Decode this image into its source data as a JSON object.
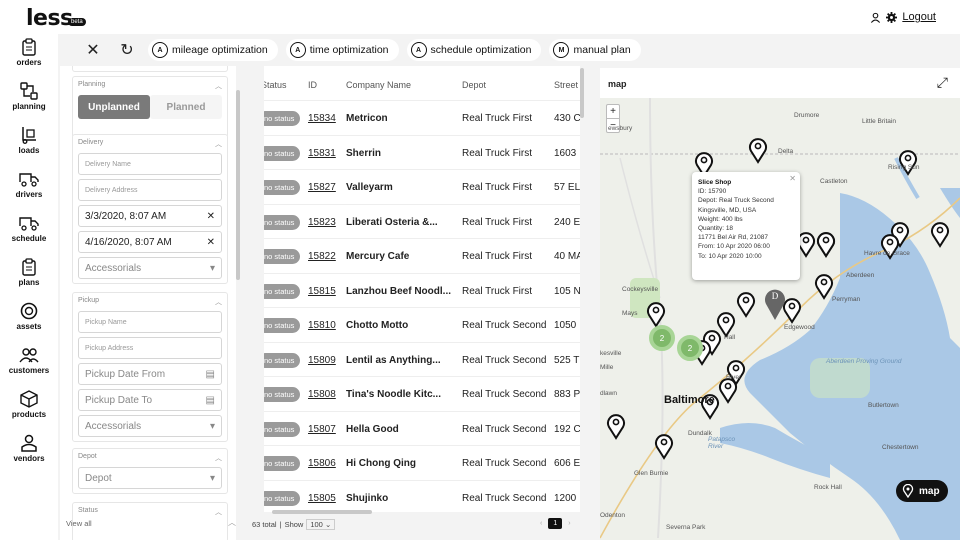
{
  "header": {
    "logo": "less",
    "logo_badge": "beta",
    "logout": "Logout"
  },
  "nav": [
    {
      "label": "orders",
      "icon": "clipboard-icon"
    },
    {
      "label": "planning",
      "icon": "route-icon"
    },
    {
      "label": "loads",
      "icon": "dolly-icon"
    },
    {
      "label": "drivers",
      "icon": "truck-user-icon"
    },
    {
      "label": "schedule",
      "icon": "truck-clock-icon"
    },
    {
      "label": "plans",
      "icon": "clipboard-list-icon"
    },
    {
      "label": "assets",
      "icon": "tire-icon"
    },
    {
      "label": "customers",
      "icon": "users-icon"
    },
    {
      "label": "products",
      "icon": "box-icon"
    },
    {
      "label": "vendors",
      "icon": "vendor-icon"
    }
  ],
  "toolbar": {
    "mileage": "mileage optimization",
    "time": "time optimization",
    "schedule": "schedule optimization",
    "manual": "manual plan",
    "mileage_badge": "A",
    "time_badge": "A",
    "schedule_badge": "A",
    "manual_badge": "M"
  },
  "filters": {
    "planning_label": "Planning",
    "unplanned": "Unplanned",
    "planned": "Planned",
    "delivery_label": "Delivery",
    "delivery_name": "Delivery Name",
    "delivery_address": "Delivery Address",
    "date_from": "3/3/2020, 8:07 AM",
    "date_to": "4/16/2020, 8:07 AM",
    "accessorials": "Accessorials",
    "pickup_label": "Pickup",
    "pickup_name": "Pickup Name",
    "pickup_address": "Pickup Address",
    "pickup_date_from": "Pickup Date From",
    "pickup_date_to": "Pickup Date To",
    "accessorials2": "Accessorials",
    "depot_label": "Depot",
    "depot": "Depot",
    "status_label": "Status",
    "view_all": "View all"
  },
  "table": {
    "headers": {
      "status": "Status",
      "id": "ID",
      "company": "Company Name",
      "depot": "Depot",
      "street": "Street"
    },
    "rows": [
      {
        "status": "no status",
        "id": "15834",
        "company": "Metricon",
        "depot": "Real Truck First",
        "street": "430 C"
      },
      {
        "status": "no status",
        "id": "15831",
        "company": "Sherrin",
        "depot": "Real Truck First",
        "street": "1603"
      },
      {
        "status": "no status",
        "id": "15827",
        "company": "Valleyarm",
        "depot": "Real Truck First",
        "street": "57 EL"
      },
      {
        "status": "no status",
        "id": "15823",
        "company": "Liberati Osteria &...",
        "depot": "Real Truck First",
        "street": "240 E"
      },
      {
        "status": "no status",
        "id": "15822",
        "company": "Mercury Cafe",
        "depot": "Real Truck First",
        "street": "40 MA"
      },
      {
        "status": "no status",
        "id": "15815",
        "company": "Lanzhou Beef Noodl...",
        "depot": "Real Truck First",
        "street": "105 N"
      },
      {
        "status": "no status",
        "id": "15810",
        "company": "Chotto Motto",
        "depot": "Real Truck Second",
        "street": "1050"
      },
      {
        "status": "no status",
        "id": "15809",
        "company": "Lentil as Anything...",
        "depot": "Real Truck Second",
        "street": "525 T"
      },
      {
        "status": "no status",
        "id": "15808",
        "company": "Tina's Noodle Kitc...",
        "depot": "Real Truck Second",
        "street": "883 P"
      },
      {
        "status": "no status",
        "id": "15807",
        "company": "Hella Good",
        "depot": "Real Truck Second",
        "street": "192 C"
      },
      {
        "status": "no status",
        "id": "15806",
        "company": "Hi Chong Qing",
        "depot": "Real Truck Second",
        "street": "606 E"
      },
      {
        "status": "no status",
        "id": "15805",
        "company": "Shujinko",
        "depot": "Real Truck Second",
        "street": "1200"
      }
    ],
    "total": "63 total",
    "show_label": "Show",
    "page_size": "100",
    "page": "1"
  },
  "map": {
    "title": "map",
    "zoom_in": "+",
    "zoom_out": "−",
    "button": "map",
    "cluster_a": "2",
    "cluster_b": "2",
    "depot_marker": "D",
    "popup": {
      "title": "Slice Shop",
      "id": "ID: 15790",
      "depot": "Depot: Real Truck Second",
      "city": "Kingsville, MD, USA",
      "weight": "Weight: 400 lbs",
      "quantity": "Quantity: 18",
      "address": "11771 Bel Air Rd, 21087",
      "from": "From: 10 Apr 2020 06:00",
      "to": "To: 10 Apr 2020 10:00"
    },
    "labels": {
      "baltimore": "Baltimore",
      "drumore": "Drumore",
      "little_britain": "Little Britain",
      "delta": "Delta",
      "rising_sun": "Rising Sun",
      "castleton": "Castleton",
      "havre": "Havre de Grace",
      "aberdeen": "Aberdeen",
      "perryman": "Perryman",
      "edgewood": "Edgewood",
      "cockeysville": "Cockeysville",
      "mays": "Mays",
      "hall": "Hall",
      "river": "River",
      "aberdeen_pg": "Aberdeen Proving Ground",
      "dundalk": "Dundalk",
      "patapsco": "Patapsco River",
      "butlertown": "Butlertown",
      "chestertown": "Chestertown",
      "rock_hall": "Rock Hall",
      "glen_burnie": "Glen Burnie",
      "odenton": "Odenton",
      "severna": "Severna Park",
      "lewsbury": "ewsbury",
      "kesville": "kesville",
      "mille": "Mille",
      "dlawn": "dlawn"
    }
  },
  "colors": {
    "accent": "#111111",
    "badge": "#9a9a9a",
    "water": "#aac8e6",
    "land": "#eef0ea"
  }
}
